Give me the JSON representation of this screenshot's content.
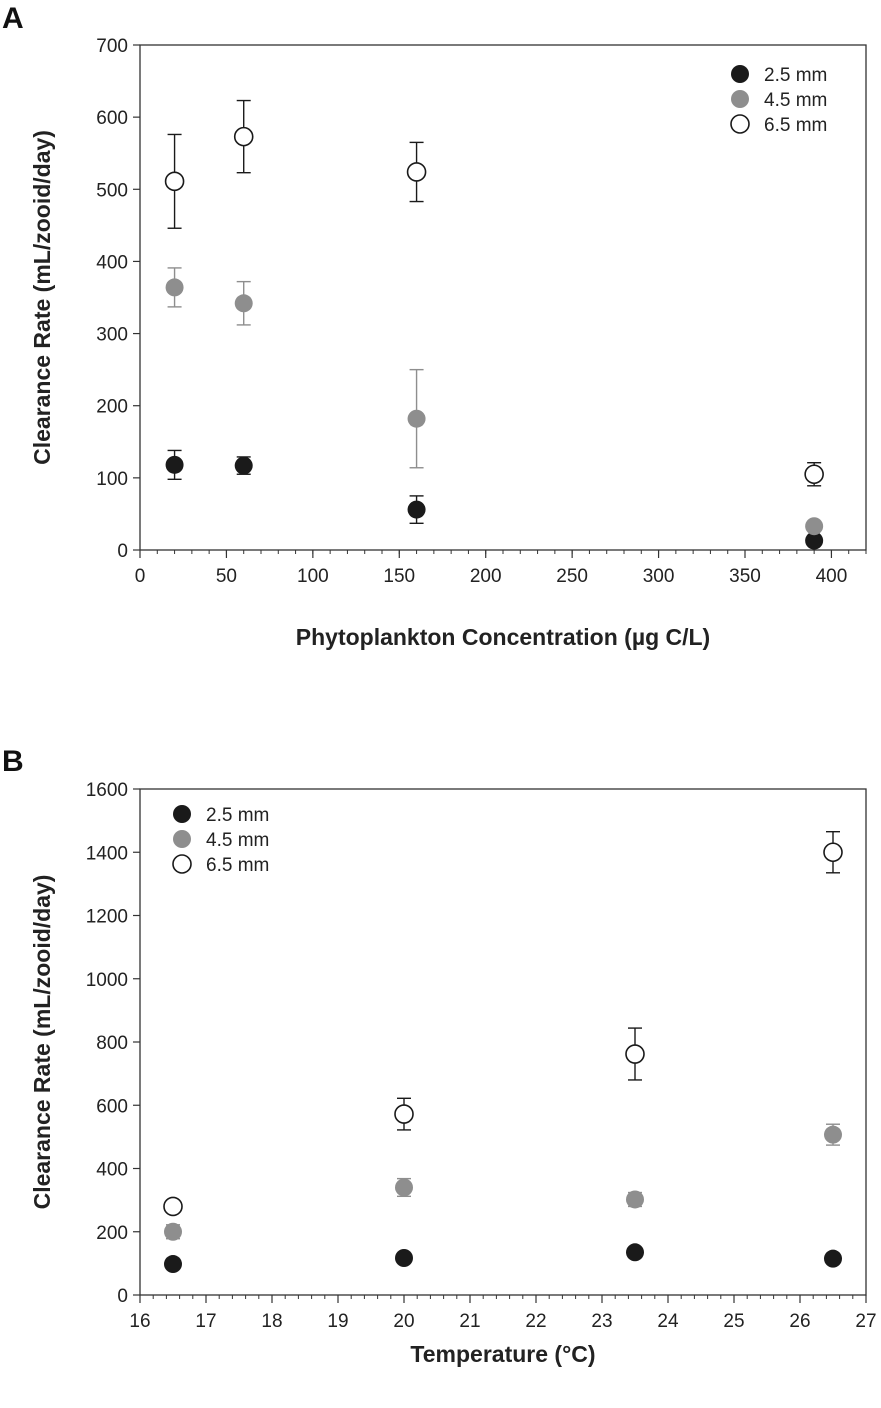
{
  "chart_data": [
    {
      "type": "scatter",
      "panel_label": "A",
      "xlabel": "Phytoplankton Concentration (µg C/L)",
      "ylabel": "Clearance Rate (mL/zooid/day)",
      "xlim": [
        0,
        420
      ],
      "ylim": [
        0,
        700
      ],
      "xticks": [
        0,
        50,
        100,
        150,
        200,
        250,
        300,
        350,
        400
      ],
      "yticks": [
        0,
        100,
        200,
        300,
        400,
        500,
        600,
        700
      ],
      "x_minor_step": 10,
      "legend_position": "top-right",
      "series": [
        {
          "name": "2.5 mm",
          "marker": "filled",
          "color": "#1a1a1a",
          "points": [
            {
              "x": 20,
              "y": 118,
              "err": 20
            },
            {
              "x": 60,
              "y": 117,
              "err": 12
            },
            {
              "x": 160,
              "y": 56,
              "err": 19
            },
            {
              "x": 390,
              "y": 13,
              "err": 0
            }
          ]
        },
        {
          "name": "4.5 mm",
          "marker": "filled",
          "color": "#8e8e8e",
          "points": [
            {
              "x": 20,
              "y": 364,
              "err": 27
            },
            {
              "x": 60,
              "y": 342,
              "err": 30
            },
            {
              "x": 160,
              "y": 182,
              "err": 68
            },
            {
              "x": 390,
              "y": 33,
              "err": 0
            }
          ]
        },
        {
          "name": "6.5 mm",
          "marker": "open",
          "color": "#1a1a1a",
          "points": [
            {
              "x": 20,
              "y": 511,
              "err": 65
            },
            {
              "x": 60,
              "y": 573,
              "err": 50
            },
            {
              "x": 160,
              "y": 524,
              "err": 41
            },
            {
              "x": 390,
              "y": 105,
              "err": 16
            }
          ]
        }
      ]
    },
    {
      "type": "scatter",
      "panel_label": "B",
      "xlabel": "Temperature (°C)",
      "ylabel": "Clearance Rate (mL/zooid/day)",
      "xlim": [
        16,
        27
      ],
      "ylim": [
        0,
        1600
      ],
      "xticks": [
        16,
        17,
        18,
        19,
        20,
        21,
        22,
        23,
        24,
        25,
        26,
        27
      ],
      "yticks": [
        0,
        200,
        400,
        600,
        800,
        1000,
        1200,
        1400,
        1600
      ],
      "x_minor_step": 0.2,
      "legend_position": "top-left",
      "series": [
        {
          "name": "2.5 mm",
          "marker": "filled",
          "color": "#1a1a1a",
          "points": [
            {
              "x": 16.5,
              "y": 98,
              "err": 0
            },
            {
              "x": 20,
              "y": 117,
              "err": 0
            },
            {
              "x": 23.5,
              "y": 135,
              "err": 0
            },
            {
              "x": 26.5,
              "y": 115,
              "err": 0
            }
          ]
        },
        {
          "name": "4.5 mm",
          "marker": "filled",
          "color": "#8e8e8e",
          "points": [
            {
              "x": 16.5,
              "y": 200,
              "err": 22
            },
            {
              "x": 20,
              "y": 340,
              "err": 28
            },
            {
              "x": 23.5,
              "y": 302,
              "err": 22
            },
            {
              "x": 26.5,
              "y": 507,
              "err": 33
            }
          ]
        },
        {
          "name": "6.5 mm",
          "marker": "open",
          "color": "#1a1a1a",
          "points": [
            {
              "x": 16.5,
              "y": 280,
              "err": 0
            },
            {
              "x": 20,
              "y": 572,
              "err": 50
            },
            {
              "x": 23.5,
              "y": 762,
              "err": 82
            },
            {
              "x": 26.5,
              "y": 1400,
              "err": 65
            }
          ]
        }
      ]
    }
  ]
}
